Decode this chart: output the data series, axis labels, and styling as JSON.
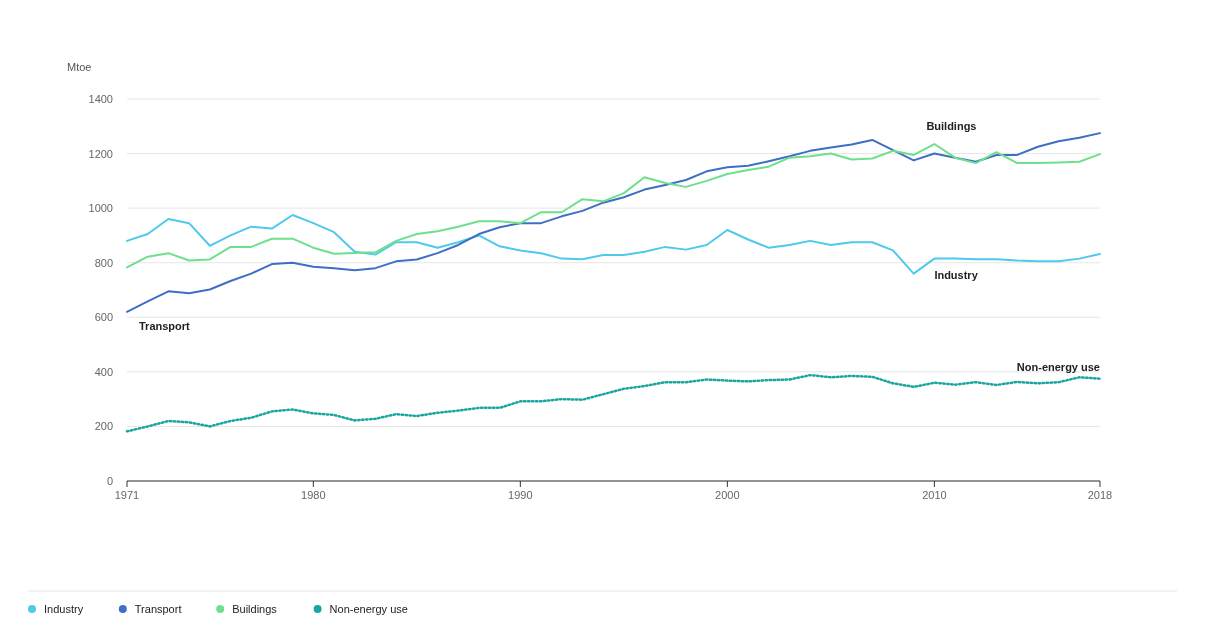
{
  "chart_data": {
    "type": "line",
    "ylabel": "Mtoe",
    "xlim": [
      1971,
      2018
    ],
    "xticks": [
      1971,
      1980,
      1990,
      2000,
      2010,
      2018
    ],
    "ylim": [
      0,
      1400
    ],
    "yticks": [
      0,
      200,
      400,
      600,
      800,
      1000,
      1200,
      1400
    ],
    "grid": "y",
    "legend": "bottom",
    "marker": "none",
    "x": [
      1971,
      1972,
      1973,
      1974,
      1975,
      1976,
      1977,
      1978,
      1979,
      1980,
      1981,
      1982,
      1983,
      1984,
      1985,
      1986,
      1987,
      1988,
      1989,
      1990,
      1991,
      1992,
      1993,
      1994,
      1995,
      1996,
      1997,
      1998,
      1999,
      2000,
      2001,
      2002,
      2003,
      2004,
      2005,
      2006,
      2007,
      2008,
      2009,
      2010,
      2011,
      2012,
      2013,
      2014,
      2015,
      2016,
      2017,
      2018
    ],
    "series": [
      {
        "name": "Industry",
        "color": "#4fc9ec",
        "line_style": "solid",
        "values": [
          880,
          905,
          960,
          945,
          862,
          900,
          932,
          925,
          975,
          945,
          912,
          840,
          830,
          875,
          875,
          855,
          875,
          900,
          860,
          845,
          835,
          815,
          813,
          828,
          828,
          840,
          858,
          848,
          865,
          920,
          885,
          855,
          865,
          880,
          865,
          875,
          875,
          845,
          760,
          815,
          815,
          813,
          813,
          808,
          805,
          805,
          815,
          832
        ]
      },
      {
        "name": "Transport",
        "color": "#3e6fc4",
        "line_style": "solid",
        "values": [
          620,
          658,
          695,
          688,
          702,
          733,
          760,
          795,
          800,
          785,
          780,
          772,
          780,
          805,
          812,
          835,
          865,
          905,
          930,
          945,
          945,
          970,
          990,
          1020,
          1040,
          1068,
          1085,
          1103,
          1135,
          1150,
          1155,
          1172,
          1190,
          1210,
          1222,
          1233,
          1250,
          1213,
          1175,
          1200,
          1185,
          1170,
          1195,
          1195,
          1225,
          1245,
          1258,
          1275
        ]
      },
      {
        "name": "Buildings",
        "color": "#6ee08c",
        "line_style": "solid",
        "values": [
          783,
          822,
          835,
          808,
          812,
          858,
          858,
          888,
          888,
          855,
          833,
          836,
          838,
          880,
          905,
          915,
          932,
          952,
          952,
          945,
          985,
          985,
          1033,
          1025,
          1055,
          1113,
          1092,
          1078,
          1100,
          1125,
          1140,
          1152,
          1185,
          1190,
          1200,
          1178,
          1182,
          1210,
          1195,
          1235,
          1185,
          1165,
          1205,
          1165,
          1165,
          1167,
          1170,
          1198
        ]
      },
      {
        "name": "Non-energy use",
        "color": "#1aa6a0",
        "line_style": "dotted",
        "values": [
          182,
          200,
          220,
          215,
          200,
          220,
          232,
          255,
          262,
          248,
          242,
          222,
          228,
          245,
          238,
          250,
          258,
          268,
          268,
          292,
          292,
          300,
          298,
          318,
          338,
          348,
          362,
          362,
          372,
          368,
          365,
          370,
          372,
          388,
          380,
          385,
          382,
          358,
          345,
          360,
          353,
          362,
          352,
          363,
          358,
          362,
          380,
          375
        ]
      }
    ]
  }
}
